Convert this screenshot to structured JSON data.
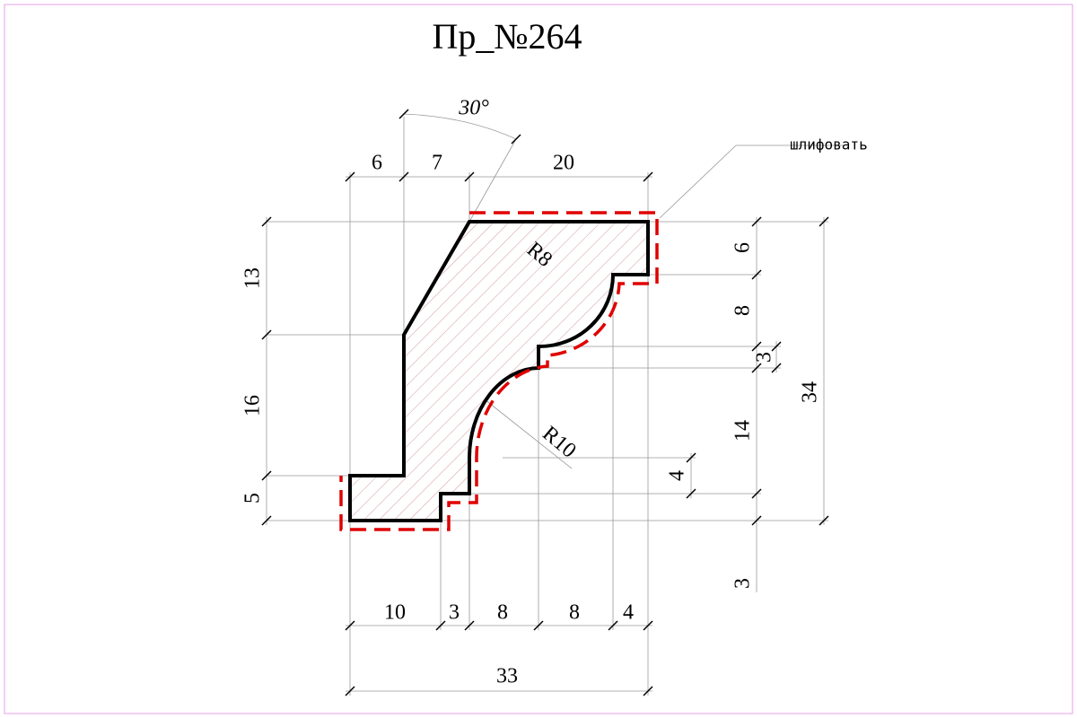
{
  "title": "Пр_№264",
  "note": "шлифовать",
  "angle": "30°",
  "radii": [
    "R8",
    "R10"
  ],
  "dims": {
    "top": [
      6,
      7,
      20
    ],
    "left": [
      13,
      16,
      5
    ],
    "right": [
      6,
      8,
      3,
      14,
      4,
      34,
      3
    ],
    "bottom": [
      10,
      3,
      8,
      8,
      4
    ],
    "total": 33
  }
}
